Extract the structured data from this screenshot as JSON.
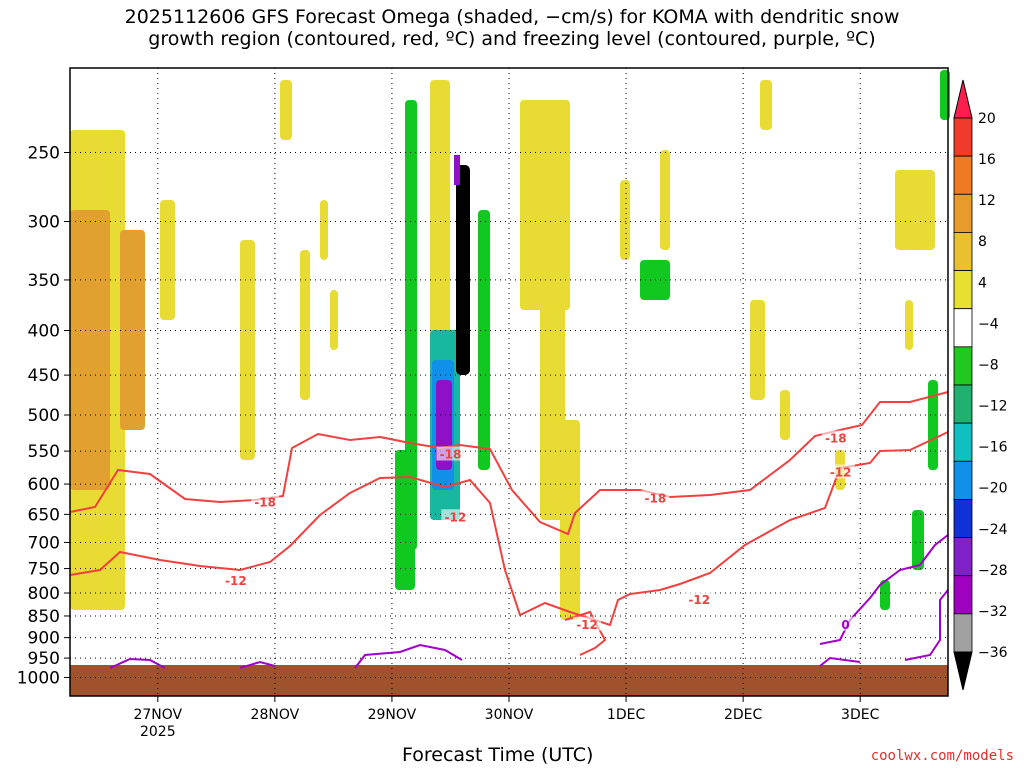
{
  "title_line1": "2025112606 GFS Forecast Omega (shaded, −cm/s) for KOMA with dendritic snow",
  "title_line2": "growth region (contoured, red, ºC) and freezing level (contoured, purple, ºC)",
  "credit": "coolwx.com/models",
  "chart_data": {
    "type": "heatmap",
    "title": "2025112606 GFS Forecast Omega (shaded, −cm/s) for KOMA with dendritic snow growth region (contoured, red, ºC) and freezing level (contoured, purple, ºC)",
    "xlabel": "Forecast Time (UTC)",
    "ylabel": "",
    "x_ticks": [
      {
        "label": "27NOV",
        "sub": "2025",
        "hours": 18
      },
      {
        "label": "28NOV",
        "sub": "",
        "hours": 42
      },
      {
        "label": "29NOV",
        "sub": "",
        "hours": 66
      },
      {
        "label": "30NOV",
        "sub": "",
        "hours": 90
      },
      {
        "label": "1DEC",
        "sub": "",
        "hours": 114
      },
      {
        "label": "2DEC",
        "sub": "",
        "hours": 138
      },
      {
        "label": "3DEC",
        "sub": "",
        "hours": 162
      }
    ],
    "x_range_hours": [
      0,
      180
    ],
    "y_scale": "log",
    "y_range_hpa": [
      200,
      1050
    ],
    "y_ticks": [
      250,
      300,
      350,
      400,
      450,
      500,
      550,
      600,
      650,
      700,
      750,
      800,
      850,
      900,
      950,
      1000
    ],
    "grid": true,
    "colorbar": {
      "labels": [
        "20",
        "16",
        "12",
        "8",
        "4",
        "−4",
        "−8",
        "−12",
        "−16",
        "−20",
        "−24",
        "−28",
        "−32",
        "−36"
      ],
      "colors": [
        "#ff1f4f",
        "#f03a2a",
        "#f07a22",
        "#e89a2a",
        "#e8c030",
        "#e8e030",
        "#ffffff",
        "#20c820",
        "#20b070",
        "#10c0c0",
        "#1090e8",
        "#1030d8",
        "#8020c8",
        "#a000c0",
        "#a0a0a0",
        "#000000"
      ]
    },
    "contours": [
      {
        "color": "#f04040",
        "labels": [
          {
            "text": "-18",
            "h": 40,
            "p": 630
          },
          {
            "text": "-12",
            "h": 34,
            "p": 775
          },
          {
            "text": "-18",
            "h": 78,
            "p": 555
          },
          {
            "text": "-12",
            "h": 79,
            "p": 655
          },
          {
            "text": "-12",
            "h": 106,
            "p": 870
          },
          {
            "text": "-18",
            "h": 120,
            "p": 623
          },
          {
            "text": "-12",
            "h": 129,
            "p": 815
          },
          {
            "text": "-18",
            "h": 157,
            "p": 532
          },
          {
            "text": "-12",
            "h": 158,
            "p": 582
          }
        ]
      },
      {
        "color": "#a000c8",
        "labels": [
          {
            "text": "0",
            "h": 159,
            "p": 870
          }
        ]
      }
    ]
  }
}
